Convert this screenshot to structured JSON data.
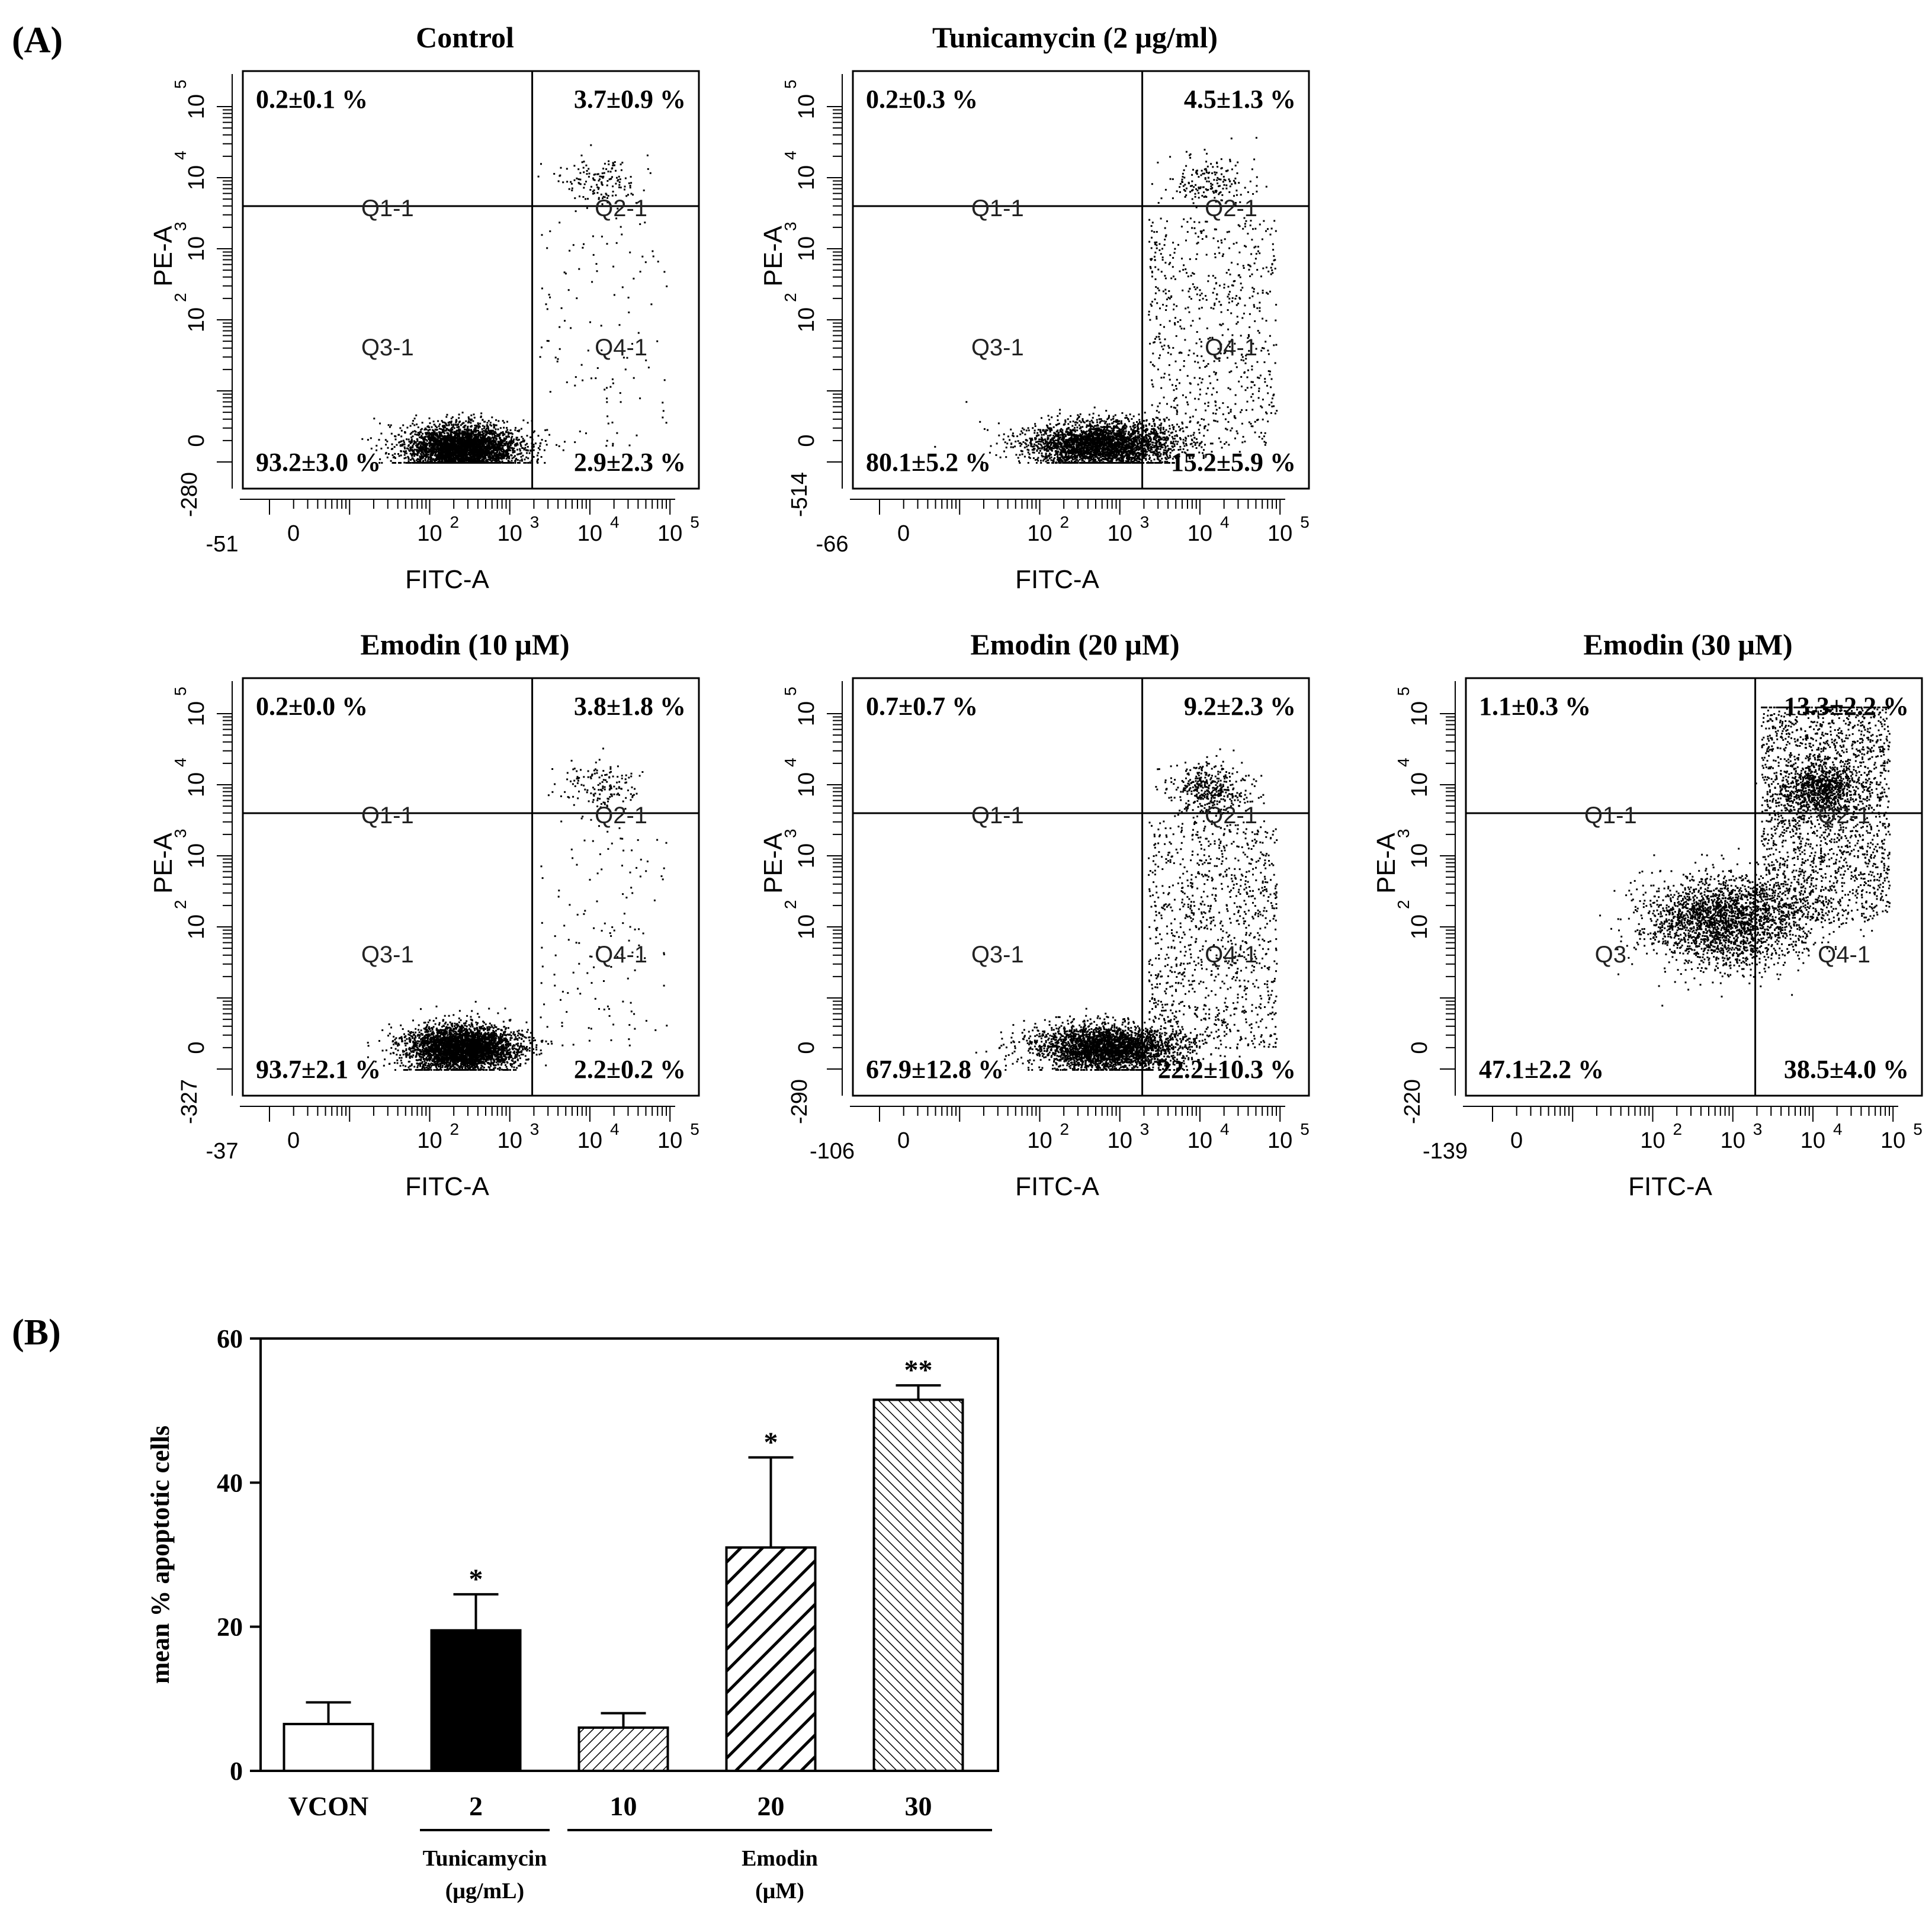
{
  "panel_labels": {
    "a": "(A)",
    "b": "(B)"
  },
  "chart_data": [
    {
      "type": "scatter",
      "subtype": "flow-cytometry-quadrant",
      "title": "Control",
      "xlabel": "FITC-A",
      "ylabel": "PE-A",
      "x_min_label": "-51",
      "y_min_label": "-280",
      "gate_labels": [
        "Q1-1",
        "Q2-1",
        "Q3-1",
        "Q4-1"
      ],
      "quadrants": {
        "Q1": "0.2±0.1 %",
        "Q2": "3.7±0.9 %",
        "Q3": "93.2±3.0 %",
        "Q4": "2.9±2.3 %"
      },
      "population": {
        "live_center_log10": [
          2.4,
          0.2
        ],
        "spread": 0.35,
        "shape": "tight"
      }
    },
    {
      "type": "scatter",
      "subtype": "flow-cytometry-quadrant",
      "title": "Tunicamycin (2 μg/ml)",
      "xlabel": "FITC-A",
      "ylabel": "PE-A",
      "x_min_label": "-66",
      "y_min_label": "-514",
      "gate_labels": [
        "Q1-1",
        "Q2-1",
        "Q3-1",
        "Q4-1"
      ],
      "quadrants": {
        "Q1": "0.2±0.3 %",
        "Q2": "4.5±1.3 %",
        "Q3": "80.1±5.2 %",
        "Q4": "15.2±5.9 %"
      },
      "population": {
        "live_center_log10": [
          2.6,
          0.25
        ],
        "spread": 0.45,
        "shape": "tail"
      }
    },
    {
      "type": "scatter",
      "subtype": "flow-cytometry-quadrant",
      "title": "Emodin (10 μM)",
      "xlabel": "FITC-A",
      "ylabel": "PE-A",
      "x_min_label": "-37",
      "y_min_label": "-327",
      "gate_labels": [
        "Q1-1",
        "Q2-1",
        "Q3-1",
        "Q4-1"
      ],
      "quadrants": {
        "Q1": "0.2±0.0 %",
        "Q2": "3.8±1.8 %",
        "Q3": "93.7±2.1 %",
        "Q4": "2.2±0.2 %"
      },
      "population": {
        "live_center_log10": [
          2.4,
          0.3
        ],
        "spread": 0.35,
        "shape": "tight"
      }
    },
    {
      "type": "scatter",
      "subtype": "flow-cytometry-quadrant",
      "title": "Emodin (20 μM)",
      "xlabel": "FITC-A",
      "ylabel": "PE-A",
      "x_min_label": "-106",
      "y_min_label": "-290",
      "gate_labels": [
        "Q3-1",
        "Q1-1",
        "Q2-1",
        "Q4-1"
      ],
      "quadrants": {
        "Q1": "0.7±0.7 %",
        "Q2": "9.2±2.3 %",
        "Q3": "67.9±12.8 %",
        "Q4": "22.2±10.3 %"
      },
      "population": {
        "live_center_log10": [
          2.7,
          0.3
        ],
        "spread": 0.45,
        "shape": "wide"
      }
    },
    {
      "type": "scatter",
      "subtype": "flow-cytometry-quadrant",
      "title": "Emodin (30 μM)",
      "xlabel": "FITC-A",
      "ylabel": "PE-A",
      "x_min_label": "-139",
      "y_min_label": "-220",
      "gate_labels": [
        "Q1-1",
        "Q2-1",
        "Q3",
        "Q4-1"
      ],
      "quadrants": {
        "Q1": "1.1±0.3 %",
        "Q2": "13.3±2.2 %",
        "Q3": "47.1±2.2 %",
        "Q4": "38.5±4.0 %"
      },
      "population": {
        "live_center_log10": [
          2.9,
          2.1
        ],
        "spread": 0.5,
        "shape": "shifted"
      }
    },
    {
      "type": "bar",
      "title": "",
      "ylabel": "mean % apoptotic cells",
      "ylim": [
        0,
        60
      ],
      "yticks": [
        "0",
        "20",
        "40",
        "60"
      ],
      "categories": [
        "VCON",
        "2",
        "10",
        "20",
        "30"
      ],
      "values": [
        6.5,
        19.5,
        6.0,
        31.0,
        51.5
      ],
      "errors": [
        3.0,
        5.0,
        2.0,
        12.5,
        2.0
      ],
      "significance": [
        "",
        "*",
        "",
        "*",
        "**"
      ],
      "fills": [
        "open",
        "solid",
        "hatch-fine",
        "hatch-wide",
        "hatch-dense"
      ],
      "groups": [
        {
          "name": "Tunicamycin",
          "unit": "(μg/mL)",
          "categories": [
            "2"
          ]
        },
        {
          "name": "Emodin",
          "unit": "(μM)",
          "categories": [
            "10",
            "20",
            "30"
          ]
        }
      ]
    }
  ]
}
